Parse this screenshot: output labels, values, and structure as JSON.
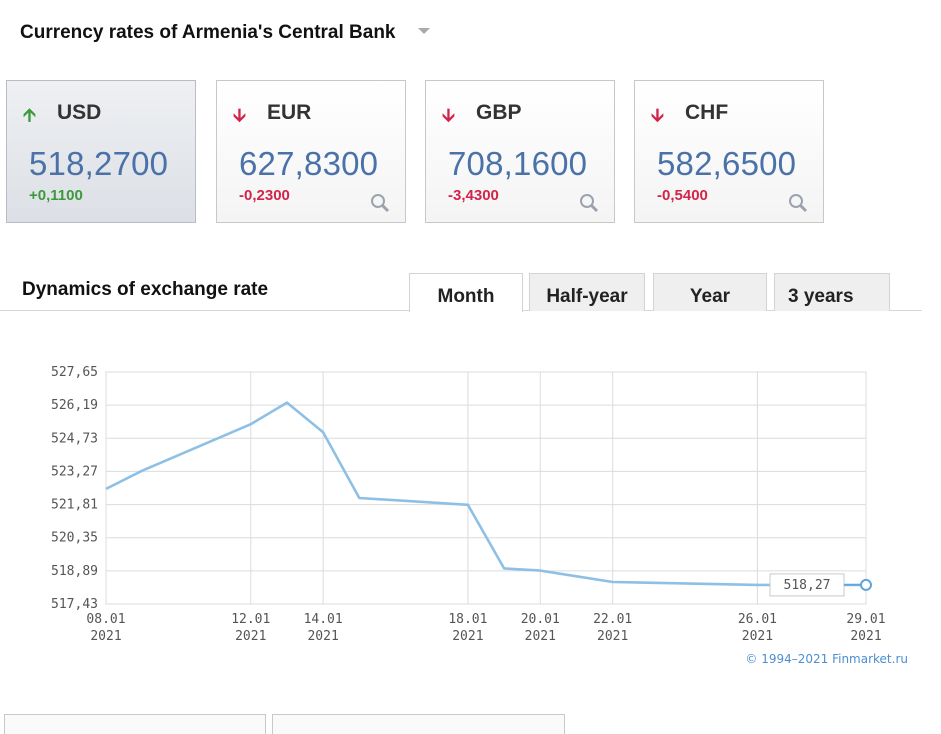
{
  "header": {
    "title": "Currency rates of Armenia's Central Bank"
  },
  "currencies": [
    {
      "code": "USD",
      "rate": "518,2700",
      "change": "+0,1100",
      "direction": "up",
      "active": true,
      "icon": "arrow-up-icon"
    },
    {
      "code": "EUR",
      "rate": "627,8300",
      "change": "-0,2300",
      "direction": "down",
      "active": false,
      "icon": "arrow-down-icon"
    },
    {
      "code": "GBP",
      "rate": "708,1600",
      "change": "-3,4300",
      "direction": "down",
      "active": false,
      "icon": "arrow-down-icon"
    },
    {
      "code": "CHF",
      "rate": "582,6500",
      "change": "-0,5400",
      "direction": "down",
      "active": false,
      "icon": "arrow-down-icon"
    }
  ],
  "dynamics": {
    "title": "Dynamics of exchange rate",
    "tabs": [
      "Month",
      "Half-year",
      "Year",
      "3 years"
    ],
    "active_tab": "Month"
  },
  "colors": {
    "rate_blue": "#4a72a8",
    "up_green": "#3b9a3b",
    "down_red": "#d2244a",
    "line": "#8ec0e6"
  },
  "chart_data": {
    "type": "line",
    "series": [
      {
        "x": [
          "2021-01-08",
          "2021-01-09",
          "2021-01-12",
          "2021-01-13",
          "2021-01-14",
          "2021-01-15",
          "2021-01-18",
          "2021-01-19",
          "2021-01-20",
          "2021-01-21",
          "2021-01-22",
          "2021-01-26",
          "2021-01-29"
        ],
        "values": [
          522.5,
          523.3,
          525.35,
          526.3,
          525.0,
          522.1,
          521.8,
          519.0,
          518.9,
          518.65,
          518.4,
          518.27,
          518.27
        ]
      }
    ],
    "yticks": [
      "527,65",
      "526,19",
      "524,73",
      "523,27",
      "521,81",
      "520,35",
      "518,89",
      "517,43"
    ],
    "ylim": [
      517.43,
      527.65
    ],
    "xticks": [
      {
        "d": "08.01",
        "y": "2021"
      },
      {
        "d": "12.01",
        "y": "2021"
      },
      {
        "d": "14.01",
        "y": "2021"
      },
      {
        "d": "18.01",
        "y": "2021"
      },
      {
        "d": "20.01",
        "y": "2021"
      },
      {
        "d": "22.01",
        "y": "2021"
      },
      {
        "d": "26.01",
        "y": "2021"
      },
      {
        "d": "29.01",
        "y": "2021"
      }
    ],
    "last_value_label": "518,27",
    "grid": true,
    "copyright": "© 1994–2021 Finmarket.ru"
  }
}
